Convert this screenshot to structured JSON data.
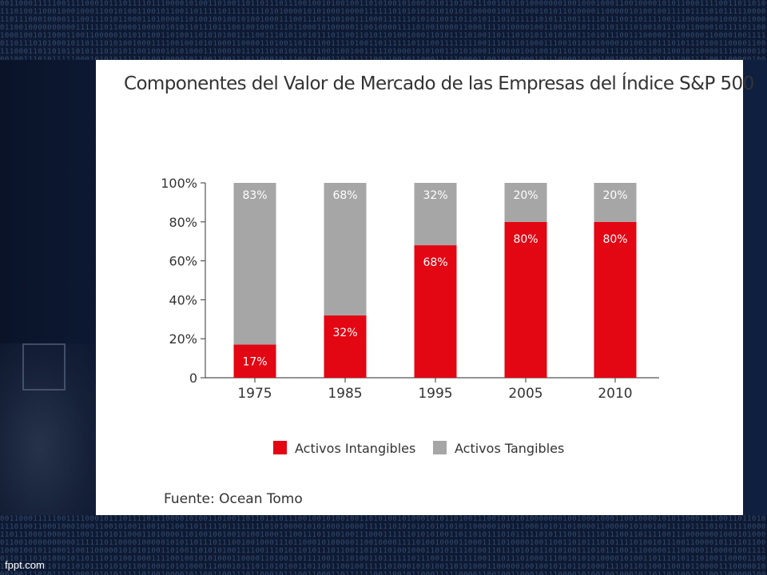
{
  "slide": {
    "title": "Componentes del Valor de Mercado de las Empresas del Índice S&P 500",
    "source": "Fuente: Ocean Tomo",
    "footer": "fppt.com"
  },
  "colors": {
    "intangible": "#e30613",
    "tangible": "#a6a6a6",
    "axis": "#555555",
    "background": "#0e1a33"
  },
  "chart_data": {
    "type": "bar",
    "stacked": true,
    "title": "Componentes del Valor de Mercado de las Empresas del Índice S&P 500",
    "categories": [
      "1975",
      "1985",
      "1995",
      "2005",
      "2010"
    ],
    "series": [
      {
        "name": "Activos Intangibles",
        "values": [
          17,
          32,
          68,
          80,
          80
        ],
        "labels": [
          "17%",
          "32%",
          "68%",
          "80%",
          "80%"
        ],
        "color": "#e30613"
      },
      {
        "name": "Activos Tangibles",
        "values": [
          83,
          68,
          32,
          20,
          20
        ],
        "labels": [
          "83%",
          "68%",
          "32%",
          "20%",
          "20%"
        ],
        "color": "#a6a6a6"
      }
    ],
    "yticks": [
      "0",
      "20%",
      "40%",
      "60%",
      "80%",
      "100%"
    ],
    "ylim": [
      0,
      100
    ],
    "xlabel": "",
    "ylabel": "",
    "grid": false,
    "legend": "bottom"
  }
}
